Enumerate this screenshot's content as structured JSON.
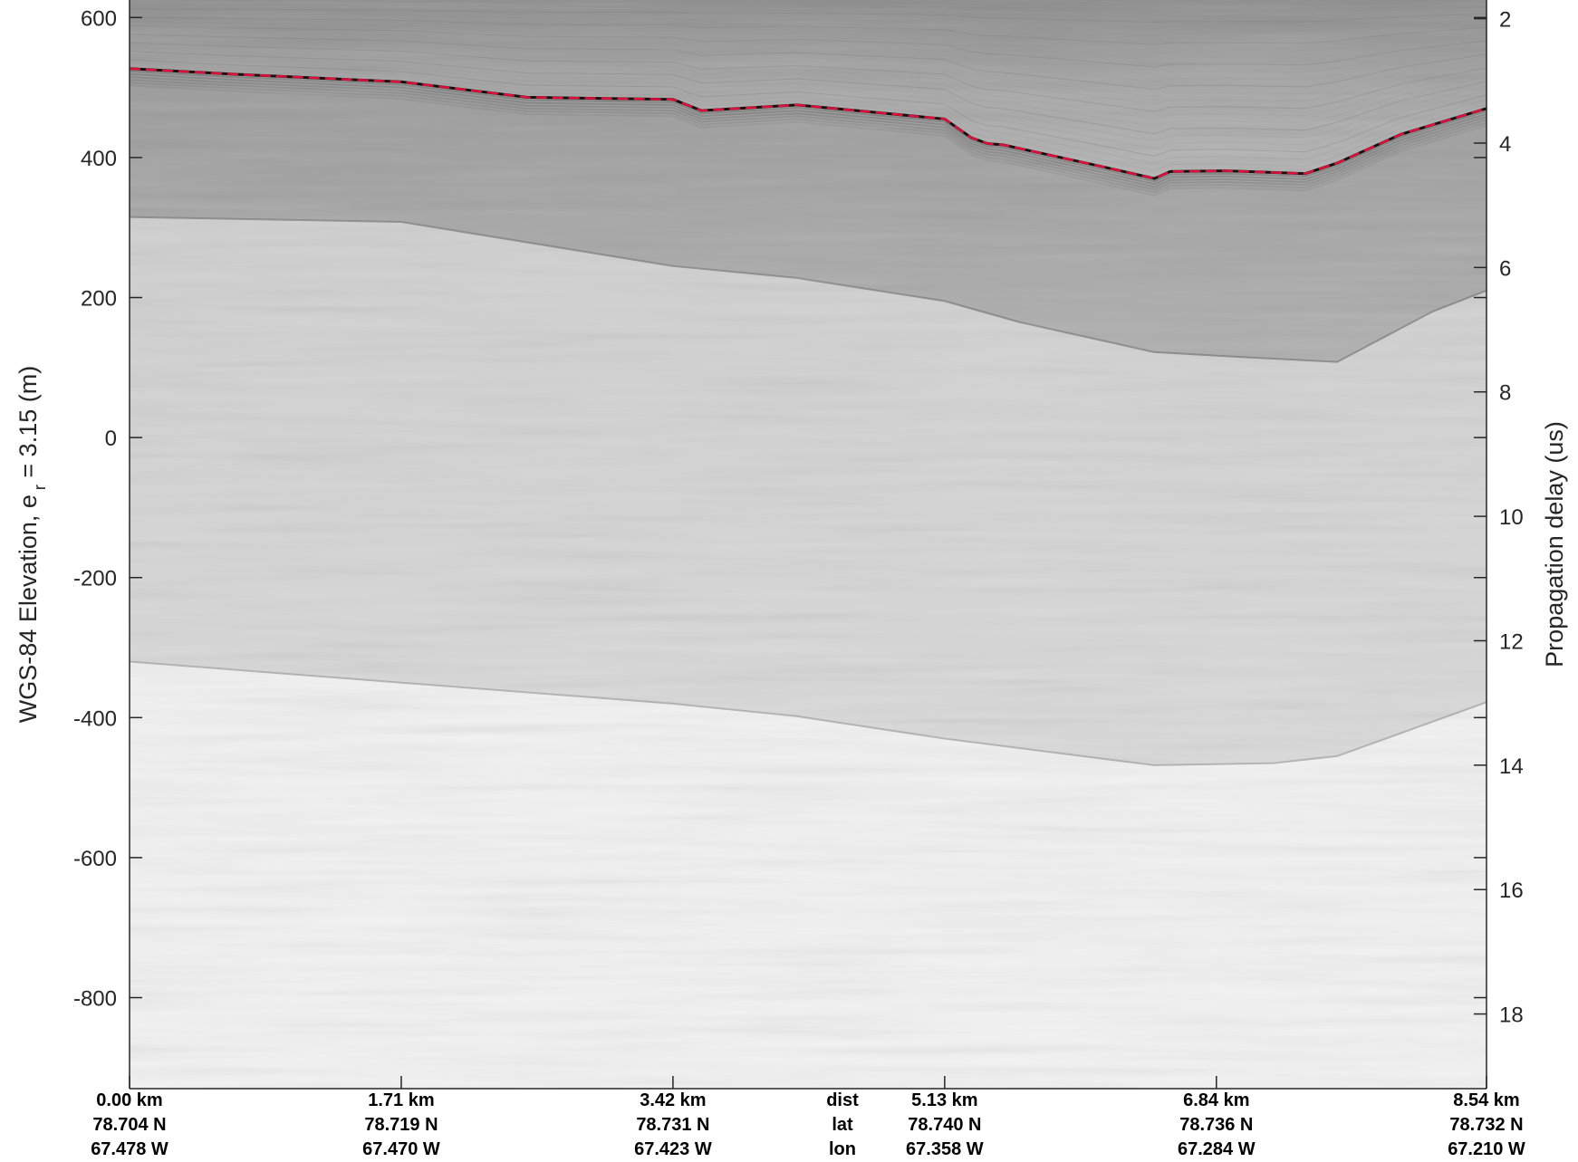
{
  "chart_data": {
    "type": "heatmap",
    "description_type": "radargram",
    "ylabel": "WGS-84 Elevation, e",
    "ylabel_subscript": "r",
    "ylabel_suffix": " = 3.15 (m)",
    "y2label": "Propagation delay (us)",
    "ylim": [
      -930,
      625
    ],
    "y_ticks": [
      600,
      400,
      200,
      0,
      -200,
      -400,
      -600,
      -800
    ],
    "y2lim": [
      1.7,
      19.2
    ],
    "y2_ticks": [
      2,
      4,
      6,
      8,
      10,
      12,
      14,
      16,
      18
    ],
    "xlim_km": [
      0,
      8.54
    ],
    "grid": false,
    "x_ticks": [
      {
        "dist": "0.00 km",
        "lat": "78.704 N",
        "lon": "67.478 W",
        "km": 0.0
      },
      {
        "dist": "1.71 km",
        "lat": "78.719 N",
        "lon": "67.470 W",
        "km": 1.71
      },
      {
        "dist": "3.42 km",
        "lat": "78.731 N",
        "lon": "67.423 W",
        "km": 3.42
      },
      {
        "dist": "5.13 km",
        "lat": "78.740 N",
        "lon": "67.358 W",
        "km": 5.13
      },
      {
        "dist": "6.84 km",
        "lat": "78.736 N",
        "lon": "67.284 W",
        "km": 6.84
      },
      {
        "dist": "8.54 km",
        "lat": "78.732 N",
        "lon": "67.210 W",
        "km": 8.54
      }
    ],
    "row_labels": {
      "dist": "dist",
      "lat": "lat",
      "lon": "lon"
    },
    "surface_pick": {
      "color": "#e0103c",
      "style": "dashed",
      "x_km": [
        0,
        0.65,
        1.71,
        2.5,
        3.42,
        3.6,
        4.2,
        5.13,
        5.3,
        5.4,
        5.5,
        6.1,
        6.45,
        6.55,
        6.9,
        7.4,
        7.6,
        8.0,
        8.54
      ],
      "y_m": [
        527,
        519,
        508,
        486,
        483,
        467,
        475,
        455,
        428,
        420,
        418,
        388,
        370,
        380,
        381,
        377,
        392,
        433,
        470
      ]
    },
    "layers": [
      {
        "name": "upper",
        "x_km": [
          0,
          1.71,
          3.42,
          4.2,
          5.13,
          5.6,
          6.45,
          7.0,
          7.6,
          8.2,
          8.54
        ],
        "y_m": [
          315,
          308,
          245,
          228,
          195,
          165,
          122,
          115,
          108,
          180,
          210
        ]
      },
      {
        "name": "base",
        "x_km": [
          0,
          1.71,
          3.42,
          4.2,
          5.13,
          6.45,
          7.2,
          7.6,
          8.54
        ],
        "y_m": [
          -320,
          -350,
          -380,
          -398,
          -430,
          -468,
          -465,
          -455,
          -378
        ]
      }
    ],
    "colors": {
      "background": "#ffffff",
      "surface_pick": "#e0103c",
      "axis": "#262626"
    }
  }
}
